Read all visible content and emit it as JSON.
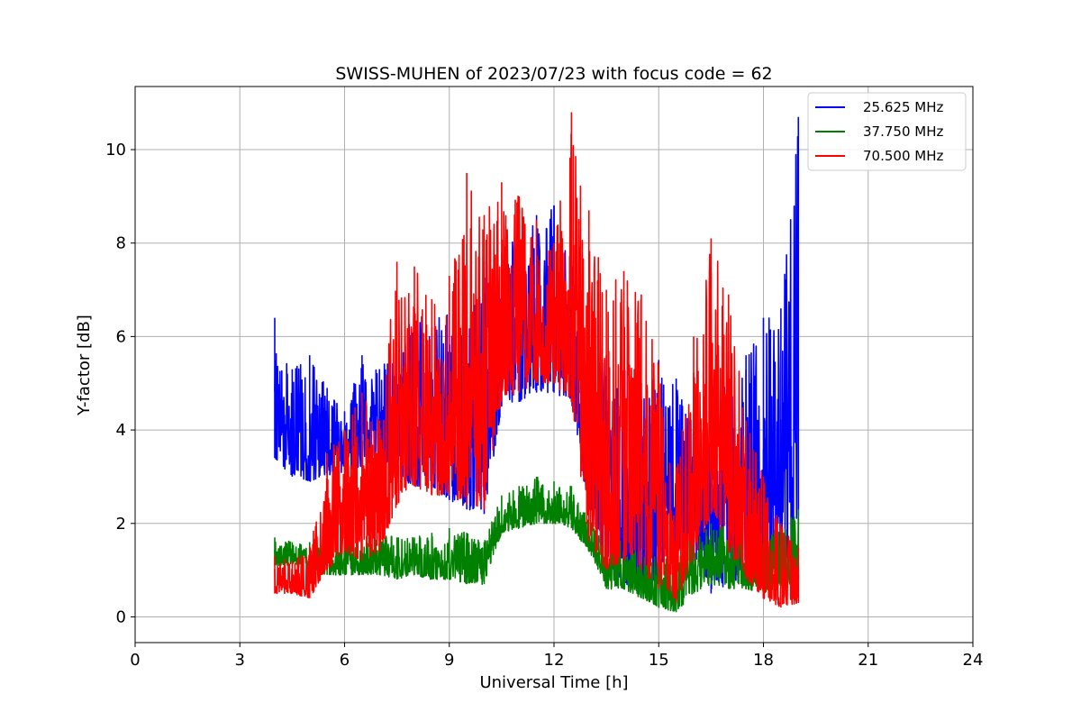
{
  "chart_data": {
    "type": "line",
    "title": "SWISS-MUHEN of 2023/07/23 with focus code = 62",
    "xlabel": "Universal Time [h]",
    "ylabel": "Y-factor [dB]",
    "xlim": [
      0,
      24
    ],
    "ylim": [
      -0.55,
      11.35
    ],
    "xticks": [
      0,
      3,
      6,
      9,
      12,
      15,
      18,
      21,
      24
    ],
    "yticks": [
      0,
      2,
      4,
      6,
      8,
      10
    ],
    "grid": true,
    "legend_position": "top-right",
    "series": [
      {
        "name": "25.625 MHz",
        "color": "#0000ff",
        "x": [
          4.0,
          4.5,
          5.0,
          5.5,
          6.0,
          6.5,
          7.0,
          7.5,
          8.0,
          8.5,
          9.0,
          9.5,
          10.0,
          10.5,
          11.0,
          11.5,
          12.0,
          12.5,
          13.0,
          13.5,
          14.0,
          14.5,
          15.0,
          15.5,
          16.0,
          16.5,
          17.0,
          17.5,
          18.0,
          18.5,
          19.0
        ],
        "low": [
          3.4,
          3.0,
          2.9,
          3.0,
          3.1,
          3.2,
          3.4,
          3.0,
          2.8,
          2.8,
          2.5,
          2.3,
          2.2,
          4.5,
          4.6,
          4.8,
          4.8,
          4.6,
          2.3,
          1.2,
          0.7,
          0.5,
          0.9,
          1.5,
          1.3,
          0.5,
          0.7,
          0.8,
          1.0,
          1.2,
          1.4
        ],
        "high": [
          6.4,
          5.3,
          5.6,
          4.9,
          4.4,
          5.6,
          5.3,
          5.7,
          6.6,
          6.2,
          6.9,
          7.2,
          7.6,
          7.8,
          8.2,
          8.6,
          8.8,
          7.6,
          6.0,
          5.6,
          5.3,
          5.0,
          5.5,
          5.1,
          4.3,
          4.2,
          5.7,
          5.6,
          6.4,
          6.6,
          10.7
        ]
      },
      {
        "name": "37.750 MHz",
        "color": "#008000",
        "x": [
          4.0,
          4.5,
          5.0,
          5.5,
          6.0,
          6.5,
          7.0,
          7.5,
          8.0,
          8.5,
          9.0,
          9.5,
          10.0,
          10.5,
          11.0,
          11.5,
          12.0,
          12.5,
          13.0,
          13.5,
          14.0,
          14.5,
          15.0,
          15.5,
          16.0,
          16.5,
          17.0,
          17.5,
          18.0,
          18.5,
          19.0
        ],
        "low": [
          1.1,
          1.1,
          1.0,
          0.9,
          0.9,
          0.9,
          0.9,
          0.8,
          0.9,
          0.8,
          0.8,
          0.7,
          0.7,
          1.8,
          1.9,
          2.0,
          2.0,
          1.9,
          1.4,
          0.6,
          0.6,
          0.4,
          0.2,
          0.1,
          0.5,
          0.7,
          0.6,
          0.6,
          0.5,
          0.6,
          0.7
        ],
        "high": [
          1.7,
          1.6,
          1.6,
          1.7,
          1.7,
          1.7,
          1.8,
          1.7,
          1.7,
          1.8,
          1.9,
          1.8,
          1.6,
          2.6,
          2.8,
          3.0,
          2.9,
          2.8,
          2.1,
          1.6,
          1.9,
          1.4,
          1.3,
          1.2,
          1.8,
          2.0,
          1.9,
          1.8,
          1.8,
          1.9,
          2.3
        ]
      },
      {
        "name": "70.500 MHz",
        "color": "#ff0000",
        "x": [
          4.0,
          4.5,
          5.0,
          5.5,
          6.0,
          6.5,
          7.0,
          7.5,
          8.0,
          8.5,
          9.0,
          9.5,
          10.0,
          10.5,
          11.0,
          11.5,
          12.0,
          12.5,
          13.0,
          13.5,
          14.0,
          14.5,
          15.0,
          15.5,
          16.0,
          16.5,
          17.0,
          17.5,
          18.0,
          18.5,
          19.0
        ],
        "low": [
          0.5,
          0.5,
          0.4,
          1.0,
          1.4,
          1.2,
          1.4,
          2.4,
          2.8,
          2.6,
          2.6,
          2.4,
          2.3,
          4.6,
          4.8,
          5.0,
          5.0,
          4.6,
          1.6,
          1.0,
          1.2,
          1.0,
          0.6,
          0.3,
          1.2,
          2.2,
          1.4,
          0.8,
          0.4,
          0.2,
          0.3
        ],
        "high": [
          1.3,
          1.2,
          1.5,
          3.5,
          4.0,
          4.8,
          4.2,
          7.6,
          7.5,
          6.8,
          7.3,
          9.5,
          8.6,
          9.3,
          9.0,
          8.5,
          8.0,
          10.8,
          8.7,
          7.0,
          7.4,
          6.9,
          5.4,
          3.2,
          6.0,
          8.1,
          6.9,
          4.2,
          3.0,
          2.0,
          1.5
        ]
      }
    ]
  }
}
